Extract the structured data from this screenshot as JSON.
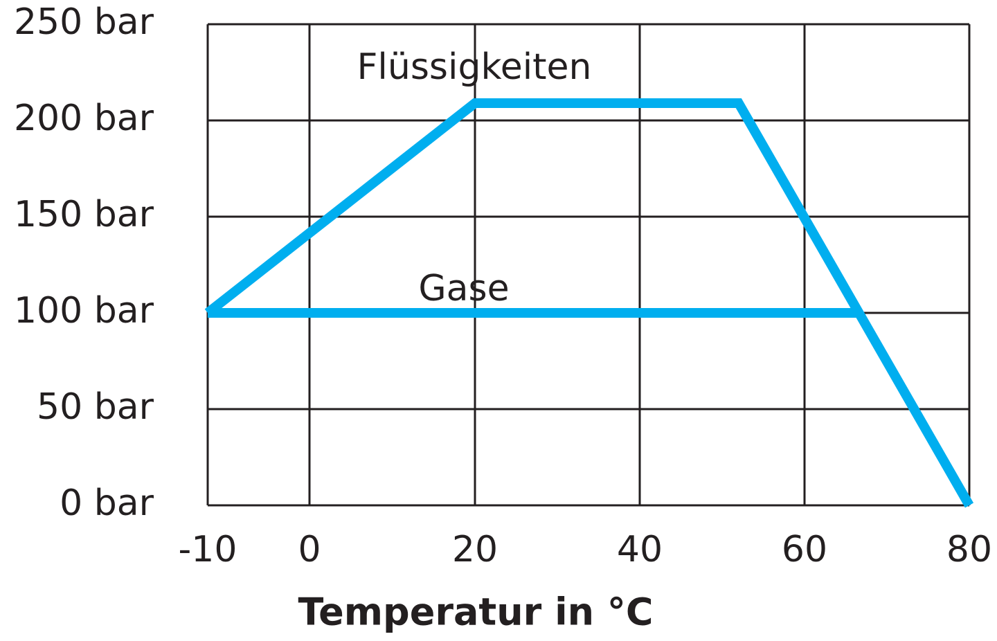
{
  "chart_data": {
    "type": "line",
    "xlabel": "Temperatur in °C",
    "series": [
      {
        "name": "Flüssigkeiten",
        "color": "#00aeef",
        "x": [
          -10,
          20,
          52,
          80
        ],
        "values": [
          100,
          209,
          209,
          0
        ]
      },
      {
        "name": "Gase",
        "color": "#00aeef",
        "x": [
          -10,
          66.7
        ],
        "values": [
          100,
          100
        ]
      }
    ],
    "xlim": [
      -10,
      80
    ],
    "xticks": [
      -10,
      0,
      20,
      40,
      60,
      80
    ],
    "ylim": [
      0,
      250
    ],
    "yticks": [
      {
        "value": 0,
        "label": "0 bar"
      },
      {
        "value": 50,
        "label": "50 bar"
      },
      {
        "value": 100,
        "label": "100 bar"
      },
      {
        "value": 150,
        "label": "150 bar"
      },
      {
        "value": 200,
        "label": "200 bar"
      },
      {
        "value": 250,
        "label": "250 bar"
      }
    ],
    "grid": true
  }
}
